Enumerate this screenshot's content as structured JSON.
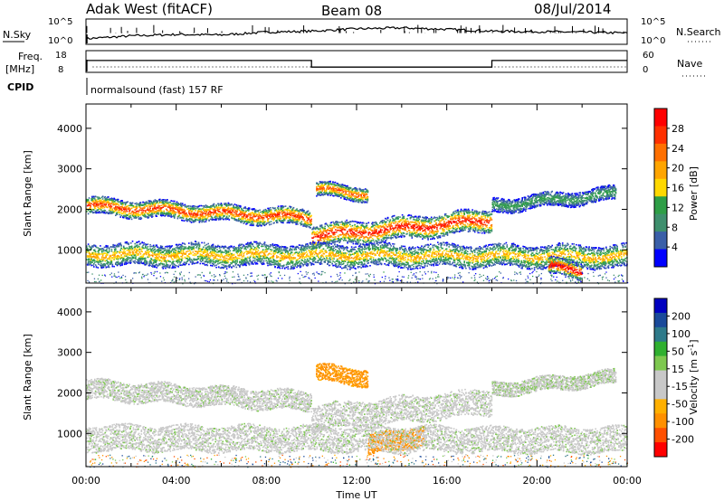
{
  "header": {
    "station": "Adak West (fitACF)",
    "beam": "Beam 08",
    "date": "08/Jul/2014"
  },
  "strip_labels": {
    "nsky": "N.Sky",
    "nsky_ticks": [
      "10^5",
      "10^0"
    ],
    "nsearch": "N.Search",
    "nsearch_ticks": [
      "10^5",
      "10^0"
    ],
    "freq_top": "Freq.",
    "freq_unit": "[MHz]",
    "freq_ticks": [
      "18",
      "8"
    ],
    "nave": "Nave",
    "nave_ticks": [
      "60",
      "0"
    ],
    "cpid": "CPID",
    "cpid_text": "normalsound (fast) 157 RF"
  },
  "colors": {
    "power": [
      "#0000ff",
      "#3a5fa8",
      "#3e8f6d",
      "#2e9e46",
      "#ffd800",
      "#ffa500",
      "#ff7000",
      "#ff3000",
      "#ff0000"
    ],
    "velocity": [
      "#ff0000",
      "#ff5000",
      "#ff9000",
      "#ffb000",
      "#c8c8c8",
      "#c8c8c8",
      "#7ec850",
      "#30b030",
      "#2e7a8a",
      "#1a4a9a",
      "#0000c0"
    ]
  },
  "chart_data": [
    {
      "type": "line",
      "title": "N.Sky / N.Search",
      "x_ticks": [
        "00:00",
        "04:00",
        "08:00",
        "12:00",
        "16:00",
        "20:00",
        "00:00"
      ],
      "x": [
        0,
        2,
        4,
        6,
        8,
        10,
        12,
        14,
        16,
        18,
        20,
        22,
        24
      ],
      "series": [
        {
          "name": "N.Sky",
          "values": [
            1,
            1.6,
            1.9,
            1.8,
            2.4,
            2.6,
            3.1,
            3.3,
            3.0,
            2.6,
            2.5,
            2.4,
            2.2
          ]
        }
      ],
      "ylim": [
        0,
        5
      ]
    },
    {
      "type": "line",
      "title": "Freq. / Nave",
      "x": [
        0,
        10,
        10,
        18,
        18,
        24
      ],
      "series": [
        {
          "name": "Freq.",
          "values": [
            13.5,
            13.5,
            10.2,
            10.2,
            13.5,
            13.5
          ]
        }
      ],
      "ylim": [
        8,
        18
      ]
    },
    {
      "type": "heatmap",
      "quantity": "Power",
      "ylabel": "Slant Range [km]",
      "colorbar_label": "Power [dB]",
      "colorbar_ticks": [
        "28",
        "24",
        "20",
        "16",
        "12",
        "8",
        "4"
      ],
      "y_ticks": [
        "4000",
        "3000",
        "2000",
        "1000"
      ],
      "ylim": [
        180,
        4600
      ],
      "xlim": [
        0,
        24
      ],
      "bands": [
        {
          "x0": 0,
          "x1": 10,
          "y_start": 2100,
          "y_end": 1800,
          "width": 300,
          "peak_db": 26
        },
        {
          "x0": 10,
          "x1": 18,
          "y_start": 1350,
          "y_end": 1750,
          "width": 400,
          "peak_db": 28
        },
        {
          "x0": 10.2,
          "x1": 12.5,
          "y_start": 2500,
          "y_end": 2400,
          "width": 250,
          "peak_db": 24
        },
        {
          "x0": 0,
          "x1": 24,
          "y_start": 900,
          "y_end": 850,
          "width": 400,
          "peak_db": 18
        },
        {
          "x0": 20.5,
          "x1": 22,
          "y_start": 600,
          "y_end": 500,
          "width": 300,
          "peak_db": 30
        },
        {
          "x0": 18,
          "x1": 23.5,
          "y_start": 2100,
          "y_end": 2400,
          "width": 250,
          "peak_db": 10
        }
      ]
    },
    {
      "type": "heatmap",
      "quantity": "Velocity",
      "ylabel": "Slant Range [km]",
      "xlabel": "Time UT",
      "colorbar_label": "Velocity [m s^-1]",
      "colorbar_ticks": [
        "200",
        "100",
        "50",
        "15",
        "-15",
        "-50",
        "-100",
        "-200"
      ],
      "y_ticks": [
        "4000",
        "3000",
        "2000",
        "1000"
      ],
      "x_ticks": [
        "00:00",
        "04:00",
        "08:00",
        "12:00",
        "16:00",
        "20:00",
        "00:00"
      ],
      "ylim": [
        180,
        4600
      ],
      "xlim": [
        0,
        24
      ],
      "bands": [
        {
          "x0": 0,
          "x1": 10,
          "y_start": 2100,
          "y_end": 1800,
          "width": 350,
          "velocity": 0
        },
        {
          "x0": 10,
          "x1": 18,
          "y_start": 1400,
          "y_end": 1800,
          "width": 450,
          "velocity": 0
        },
        {
          "x0": 10.2,
          "x1": 12.5,
          "y_start": 2500,
          "y_end": 2400,
          "width": 300,
          "velocity": -60
        },
        {
          "x0": 12.5,
          "x1": 15,
          "y_start": 700,
          "y_end": 1000,
          "width": 350,
          "velocity": -80
        },
        {
          "x0": 0,
          "x1": 24,
          "y_start": 900,
          "y_end": 850,
          "width": 450,
          "velocity": 0
        },
        {
          "x0": 18,
          "x1": 23.5,
          "y_start": 2100,
          "y_end": 2400,
          "width": 250,
          "velocity": 5
        }
      ]
    }
  ]
}
